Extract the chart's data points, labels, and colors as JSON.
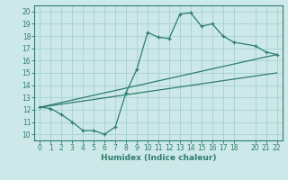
{
  "xlabel": "Humidex (Indice chaleur)",
  "xlim": [
    -0.5,
    22.5
  ],
  "ylim": [
    9.5,
    20.5
  ],
  "xticks": [
    0,
    1,
    2,
    3,
    4,
    5,
    6,
    7,
    8,
    9,
    10,
    11,
    12,
    13,
    14,
    15,
    16,
    17,
    18,
    20,
    21,
    22
  ],
  "yticks": [
    10,
    11,
    12,
    13,
    14,
    15,
    16,
    17,
    18,
    19,
    20
  ],
  "line_color": "#2e7d6e",
  "bg_color": "#cce8e8",
  "grid_color": "#aad4d4",
  "zigzag_x": [
    0,
    1,
    2,
    3,
    4,
    5,
    6,
    7,
    8,
    9,
    10,
    11,
    12,
    13,
    14,
    15,
    16,
    17,
    18,
    20,
    21,
    22
  ],
  "zigzag_y": [
    12.2,
    12.1,
    11.6,
    11.0,
    10.3,
    10.3,
    10.0,
    10.6,
    13.4,
    15.3,
    18.3,
    17.9,
    17.8,
    19.8,
    19.9,
    18.8,
    19.0,
    18.0,
    17.5,
    17.2,
    16.7,
    16.5
  ],
  "trend1_x": [
    0,
    22
  ],
  "trend1_y": [
    12.2,
    16.5
  ],
  "trend2_x": [
    0,
    22
  ],
  "trend2_y": [
    12.2,
    15.0
  ]
}
